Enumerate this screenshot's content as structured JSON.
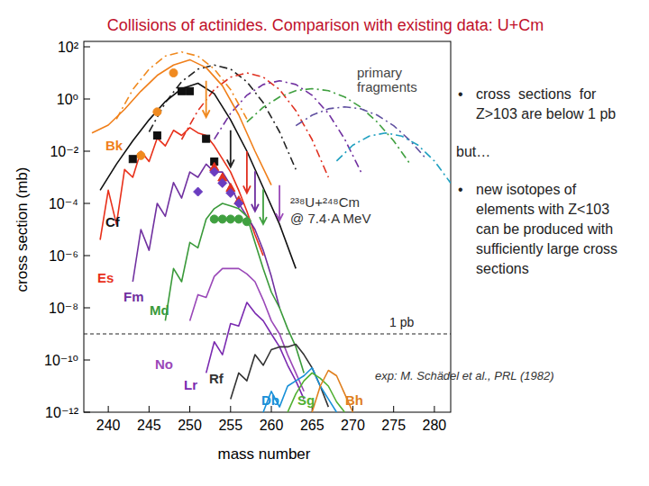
{
  "chart_data": {
    "type": "line",
    "title": "Collisions of actinides. Comparison with existing data: U+Cm",
    "x_label": "mass number",
    "y_label": "cross section (mb)",
    "log": "y",
    "xlim": [
      237,
      282
    ],
    "ylim": [
      1e-12,
      100
    ],
    "xticks": [
      240,
      245,
      250,
      255,
      260,
      265,
      270,
      275,
      280
    ],
    "yticks": [
      {
        "value": 100,
        "label": "10²"
      },
      {
        "value": 1,
        "label": "10⁰"
      },
      {
        "value": 0.01,
        "label": "10⁻²"
      },
      {
        "value": 0.0001,
        "label": "10⁻⁴"
      },
      {
        "value": 1e-06,
        "label": "10⁻⁶"
      },
      {
        "value": 1e-08,
        "label": "10⁻⁸"
      },
      {
        "value": 1e-10,
        "label": "10⁻¹⁰"
      },
      {
        "value": 1e-12,
        "label": "10⁻¹²"
      }
    ],
    "series": [
      {
        "name": "Bk",
        "color": "#f07f1a",
        "x": [
          238,
          240,
          242,
          244,
          246,
          248,
          250,
          252,
          254,
          256,
          258,
          260
        ],
        "values": [
          0.05,
          0.1,
          0.4,
          2,
          8,
          20,
          32,
          16,
          3.2,
          0.25,
          0.01,
          0.0005
        ]
      },
      {
        "name": "Cf",
        "color": "#111111",
        "x": [
          239,
          241,
          243,
          245,
          247,
          249,
          251,
          253,
          255,
          257,
          259,
          261,
          263
        ],
        "values": [
          0.00032,
          0.0032,
          0.025,
          0.16,
          0.8,
          2.5,
          4,
          1.6,
          0.16,
          0.01,
          0.0004,
          1.6e-05,
          3.2e-07
        ]
      },
      {
        "name": "Es",
        "color": "#e8301a",
        "x": [
          239,
          240,
          241,
          242,
          243,
          244,
          245,
          246,
          247,
          248,
          249,
          250,
          251,
          252,
          253,
          254,
          255,
          256,
          257,
          258,
          259
        ],
        "values": [
          4e-06,
          0.00032,
          1.6e-05,
          0.002,
          0.001,
          0.01,
          0.004,
          0.032,
          0.016,
          0.063,
          0.04,
          0.08,
          0.05,
          0.04,
          0.016,
          0.005,
          0.0016,
          0.00032,
          5e-05,
          6.3e-06,
          1e-06
        ]
      },
      {
        "name": "Fm",
        "color": "#7030a0",
        "x": [
          243,
          244,
          245,
          246,
          247,
          248,
          249,
          250,
          251,
          252,
          253,
          254,
          255,
          256,
          257,
          258,
          259,
          260,
          261
        ],
        "values": [
          1e-07,
          1e-05,
          1.6e-06,
          0.0001,
          3.2e-05,
          0.00063,
          0.00016,
          0.0016,
          0.001,
          0.0032,
          0.0016,
          0.0016,
          0.0005,
          0.0001,
          3.2e-05,
          1e-05,
          1.6e-06,
          1.6e-07,
          1e-08
        ]
      },
      {
        "name": "Md",
        "color": "#3a9a3a",
        "x": [
          247,
          248,
          249,
          250,
          251,
          252,
          253,
          254,
          255,
          256,
          257,
          258,
          259,
          260,
          261,
          262,
          263,
          264
        ],
        "values": [
          3.2e-09,
          3.2e-07,
          1e-07,
          3.2e-06,
          2e-06,
          2.5e-05,
          6.3e-05,
          0.0001,
          8e-05,
          6.3e-05,
          3.2e-05,
          3.2e-06,
          3.2e-07,
          4e-08,
          1e-08,
          1.6e-09,
          3.2e-10,
          3.2e-11
        ]
      },
      {
        "name": "No",
        "color": "#9a48b8",
        "x": [
          250,
          251,
          252,
          253,
          254,
          255,
          256,
          257,
          258,
          259,
          260,
          261,
          262,
          263,
          264
        ],
        "values": [
          3.2e-09,
          3.2e-08,
          2.5e-08,
          1.6e-07,
          3.2e-07,
          3.2e-07,
          3.2e-07,
          2e-07,
          1e-07,
          2e-08,
          3.2e-09,
          1e-09,
          1.6e-10,
          3.2e-11,
          6.3e-12
        ]
      },
      {
        "name": "Lr",
        "color": "#7a2ab0",
        "x": [
          252,
          253,
          254,
          255,
          256,
          257,
          258,
          259,
          260,
          261,
          262,
          263,
          264
        ],
        "values": [
          3.2e-11,
          5e-10,
          1.6e-10,
          2.5e-09,
          2e-09,
          1.6e-08,
          6.3e-09,
          3.2e-09,
          1e-09,
          3.2e-10,
          6.3e-11,
          1.6e-11,
          3.2e-12
        ]
      },
      {
        "name": "Rf",
        "color": "#333333",
        "x": [
          255,
          256,
          257,
          258,
          259,
          260,
          261,
          262,
          263,
          264,
          265,
          266,
          267
        ],
        "values": [
          3.2e-12,
          3.2e-11,
          1.6e-11,
          1.6e-10,
          6.3e-11,
          2.5e-10,
          3.2e-10,
          3.2e-10,
          4e-10,
          1.6e-10,
          5e-11,
          1e-11,
          1.6e-12
        ]
      },
      {
        "name": "Db",
        "color": "#1890d8",
        "x": [
          259,
          260,
          261,
          262,
          263,
          264,
          265,
          266,
          267,
          268
        ],
        "values": [
          1e-12,
          6.3e-12,
          1.6e-12,
          1e-11,
          1.6e-11,
          2.5e-11,
          5e-11,
          1e-11,
          3.2e-12,
          1e-12
        ]
      },
      {
        "name": "Sg",
        "color": "#50b030",
        "x": [
          262,
          263,
          264,
          265,
          266,
          267,
          268,
          269
        ],
        "values": [
          1e-12,
          5e-12,
          1.6e-11,
          3.2e-11,
          2e-11,
          1e-11,
          2.5e-12,
          1e-12
        ]
      },
      {
        "name": "Bh",
        "color": "#e08020",
        "x": [
          265,
          266,
          267,
          268,
          269,
          270
        ],
        "values": [
          1e-12,
          1e-11,
          4e-11,
          2.5e-11,
          5e-12,
          1e-12
        ]
      }
    ],
    "fragments_label": [
      "primary",
      "fragments"
    ],
    "fragments": [
      {
        "color": "#f08a20",
        "line_style": "dashdot",
        "x": [
          241,
          243,
          245,
          247,
          249,
          251,
          253,
          255,
          257
        ],
        "values": [
          0.17,
          2.3,
          14,
          44,
          63,
          44,
          14,
          2.3,
          0.17
        ]
      },
      {
        "color": "#222222",
        "line_style": "dashdot",
        "x": [
          245,
          247,
          249,
          251,
          253,
          255,
          257,
          259,
          261,
          263
        ],
        "values": [
          0.055,
          0.72,
          4.6,
          14,
          20,
          14,
          4.6,
          0.72,
          0.055,
          0.002
        ]
      },
      {
        "color": "#e03020",
        "line_style": "dashdot",
        "x": [
          249,
          251,
          253,
          255,
          257,
          259,
          261,
          263,
          265,
          267
        ],
        "values": [
          0.028,
          0.36,
          2.3,
          6.9,
          10,
          6.9,
          2.3,
          0.36,
          0.028,
          0.001
        ]
      },
      {
        "color": "#7030a0",
        "line_style": "dashdot",
        "x": [
          253,
          255,
          257,
          259,
          261,
          263,
          265,
          267,
          269,
          271
        ],
        "values": [
          0.029,
          0.28,
          1.4,
          3.6,
          5,
          3.6,
          1.4,
          0.28,
          0.029,
          0.0016
        ]
      },
      {
        "color": "#40a040",
        "line_style": "dashdot",
        "x": [
          257,
          259,
          261,
          263,
          265,
          267,
          269,
          271,
          273,
          275,
          277
        ],
        "values": [
          0.13,
          0.48,
          1.2,
          2.1,
          2.5,
          2.1,
          1.2,
          0.48,
          0.13,
          0.025,
          0.0033
        ]
      },
      {
        "color": "#6050a0",
        "line_style": "dashdot",
        "x": [
          263,
          265,
          267,
          269,
          271,
          273,
          275,
          277,
          279
        ],
        "values": [
          0.095,
          0.24,
          0.42,
          0.5,
          0.42,
          0.24,
          0.095,
          0.026,
          0.005
        ]
      },
      {
        "color": "#20a0c0",
        "line_style": "dashdot",
        "x": [
          268,
          270,
          272,
          274,
          276,
          278,
          280,
          282
        ],
        "values": [
          0.0042,
          0.017,
          0.038,
          0.05,
          0.038,
          0.017,
          0.0042,
          0.0006
        ]
      }
    ],
    "experiment": [
      {
        "color": "#f08a20",
        "marker": "circle",
        "x": [
          244,
          246,
          248
        ],
        "values": [
          0.0068,
          0.32,
          10
        ]
      },
      {
        "color": "#111111",
        "marker": "square",
        "x": [
          243,
          246,
          249,
          250,
          252,
          253
        ],
        "values": [
          0.005,
          0.04,
          2,
          2,
          0.03,
          0.004
        ]
      },
      {
        "color": "#e03020",
        "marker": "triangle",
        "x": [
          253,
          254,
          255,
          256
        ],
        "values": [
          0.0025,
          0.001,
          0.0004,
          0.00013
        ]
      },
      {
        "color": "#6a3cc0",
        "marker": "diamond",
        "x": [
          251,
          253,
          254,
          255,
          256
        ],
        "values": [
          0.00028,
          0.0016,
          0.0006,
          0.00025,
          0.0001
        ]
      },
      {
        "color": "#40a040",
        "marker": "circle",
        "x": [
          253,
          254,
          255,
          256,
          257
        ],
        "values": [
          2.5e-05,
          2.5e-05,
          2.5e-05,
          2.5e-05,
          2e-05
        ]
      }
    ],
    "arrows": [
      {
        "x": 252,
        "from": 5,
        "to": 0.2,
        "color": "#f08a20"
      },
      {
        "x": 255,
        "from": 0.063,
        "to": 0.0025,
        "color": "#222222"
      },
      {
        "x": 257,
        "from": 0.01,
        "to": 0.00025,
        "color": "#e03020"
      },
      {
        "x": 258,
        "from": 0.0017,
        "to": 5e-05,
        "color": "#7030a0"
      },
      {
        "x": 259,
        "from": 0.00035,
        "to": 1.6e-05,
        "color": "#40a040"
      },
      {
        "x": 261,
        "from": 0.0005,
        "to": 2.2e-05,
        "color": "#9a48b8"
      }
    ],
    "reaction": [
      "²³⁸U+²⁴⁸Cm",
      "@ 7.4·A MeV"
    ],
    "reference_line": {
      "value": 1e-09,
      "label": "1 pb"
    },
    "source": "exp: M. Schädel et al., PRL (1982)",
    "notes": [
      {
        "bullet": "•",
        "lines": [
          "cross  sections  for",
          "Z>103 are below 1 pb"
        ]
      },
      {
        "bullet": "",
        "lines": [
          "but…"
        ]
      },
      {
        "bullet": "•",
        "lines": [
          "new isotopes of",
          "elements with Z<103",
          "can be produced with",
          "sufficiently large cross",
          "sections"
        ]
      }
    ]
  }
}
